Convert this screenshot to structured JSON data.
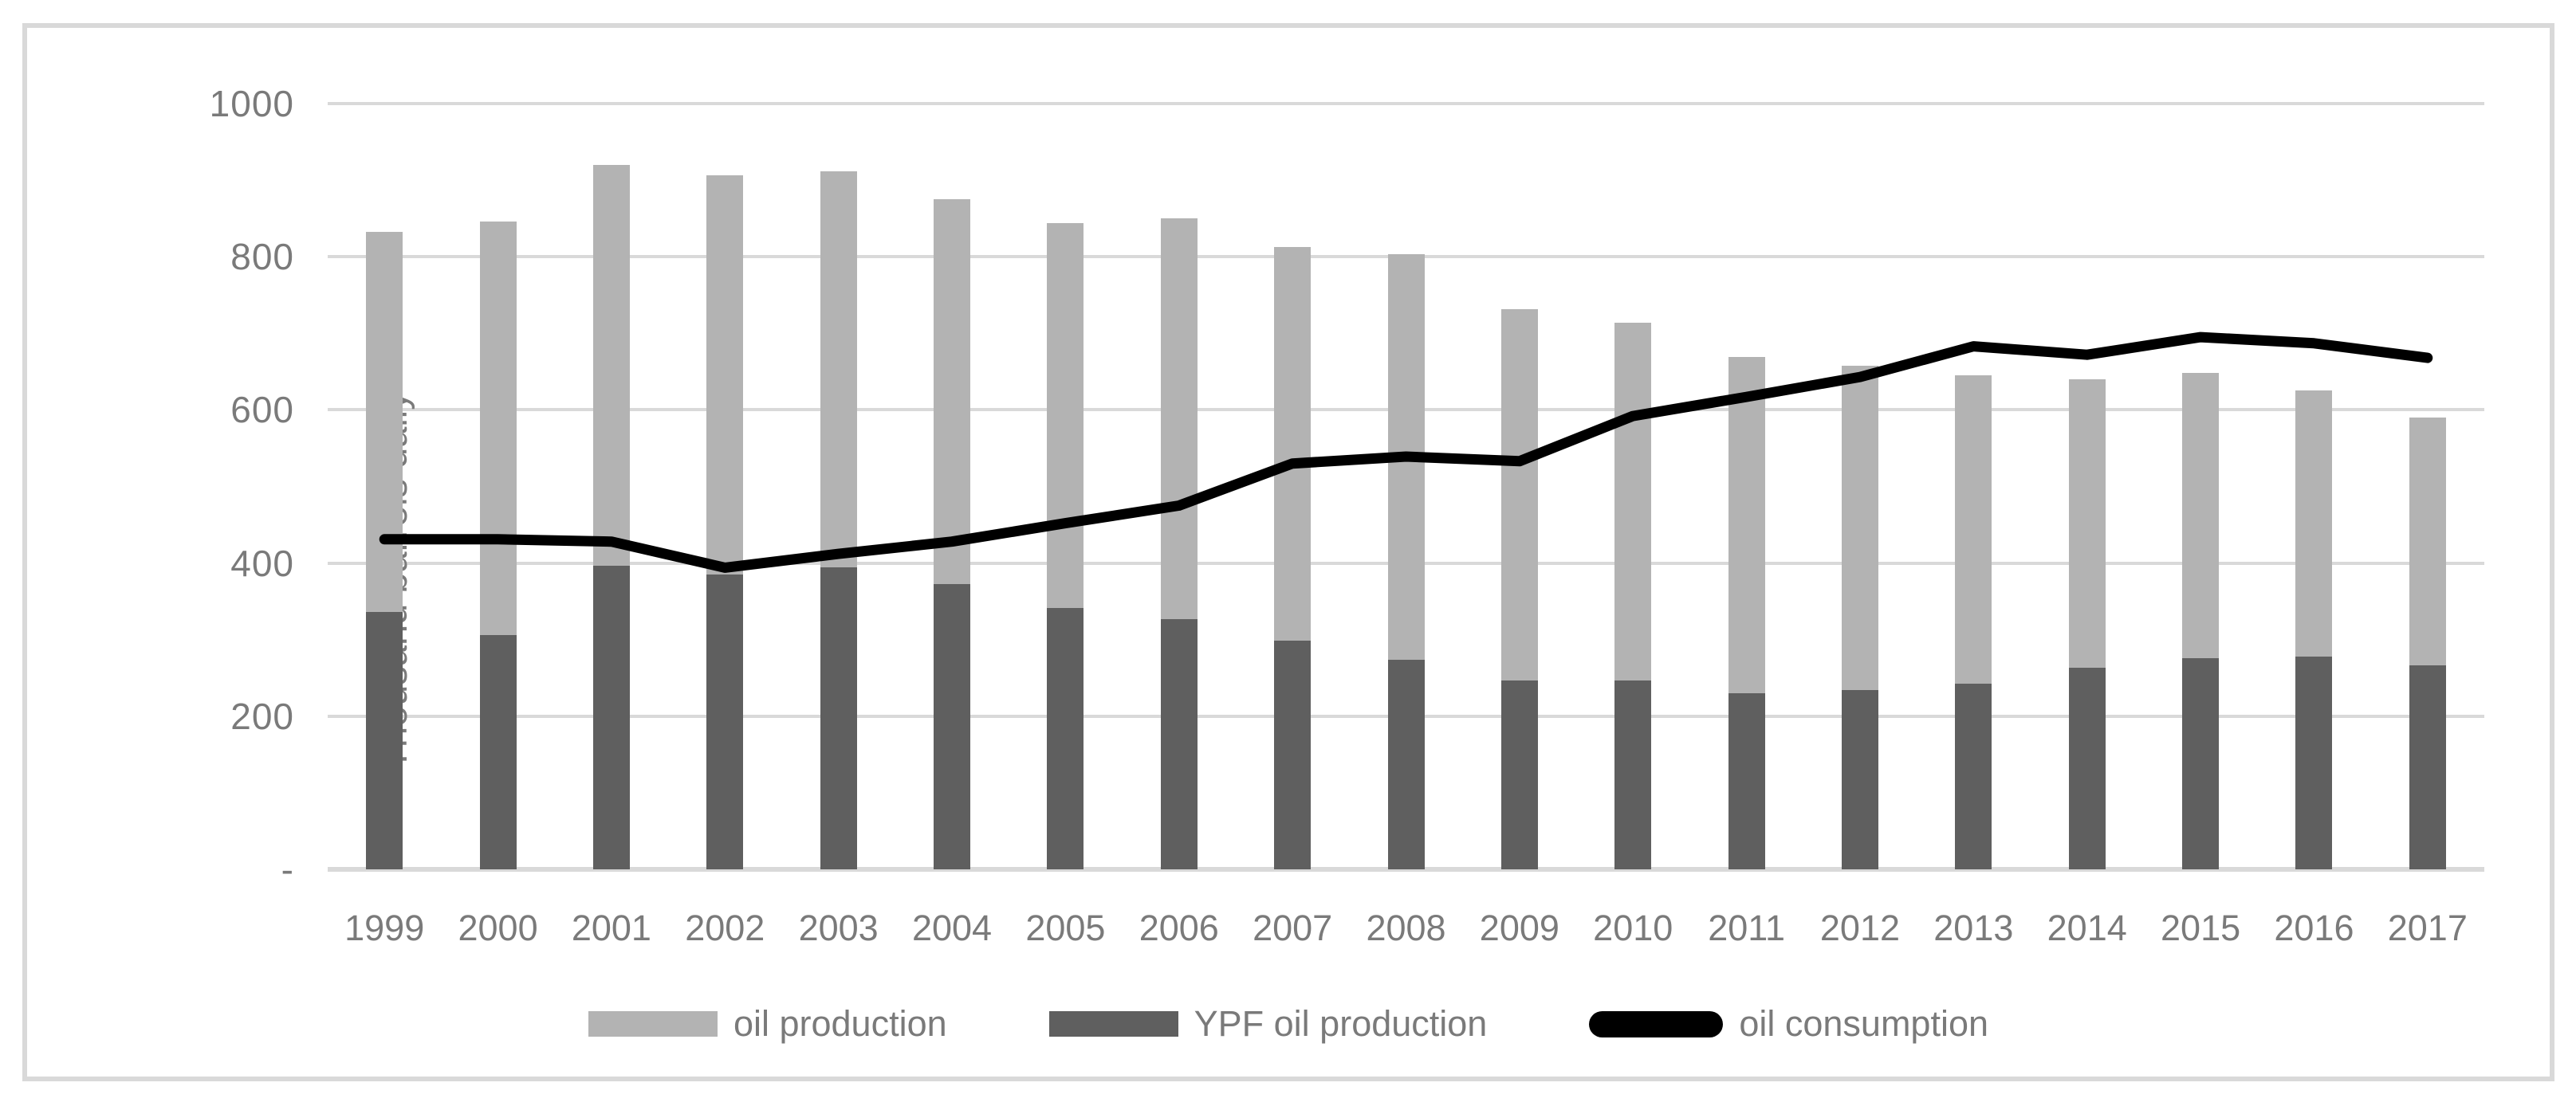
{
  "chart_data": {
    "type": "bar+line",
    "ylabel": "Thousand barrels daily",
    "ylim": [
      0,
      1000
    ],
    "ytick_values": [
      1000,
      800,
      600,
      400,
      200,
      0
    ],
    "ytick_labels": [
      "1000",
      "800",
      "600",
      "400",
      "200",
      "-"
    ],
    "grid": true,
    "legend_position": "bottom-center",
    "categories": [
      "1999",
      "2000",
      "2001",
      "2002",
      "2003",
      "2004",
      "2005",
      "2006",
      "2007",
      "2008",
      "2009",
      "2010",
      "2011",
      "2012",
      "2013",
      "2014",
      "2015",
      "2016",
      "2017"
    ],
    "series": [
      {
        "name": "oil production",
        "type": "bar",
        "color": "#b3b3b3",
        "values": [
          832,
          846,
          920,
          906,
          912,
          875,
          844,
          850,
          813,
          803,
          732,
          714,
          669,
          658,
          645,
          640,
          648,
          625,
          590
        ]
      },
      {
        "name": "YPF oil production",
        "type": "bar",
        "color": "#5f5f5f",
        "values": [
          336,
          306,
          396,
          385,
          394,
          373,
          341,
          327,
          299,
          274,
          247,
          247,
          230,
          234,
          242,
          263,
          276,
          278,
          266
        ]
      },
      {
        "name": "oil consumption",
        "type": "line",
        "color": "#000000",
        "values": [
          431,
          431,
          428,
          394,
          412,
          428,
          452,
          475,
          530,
          539,
          533,
          592,
          617,
          643,
          683,
          672,
          695,
          687,
          668
        ]
      }
    ],
    "colors": {
      "gridline": "#d9d9d9",
      "frame_border": "#d9d9d9",
      "axis_text": "#7a7a7a",
      "background": "#ffffff"
    }
  }
}
